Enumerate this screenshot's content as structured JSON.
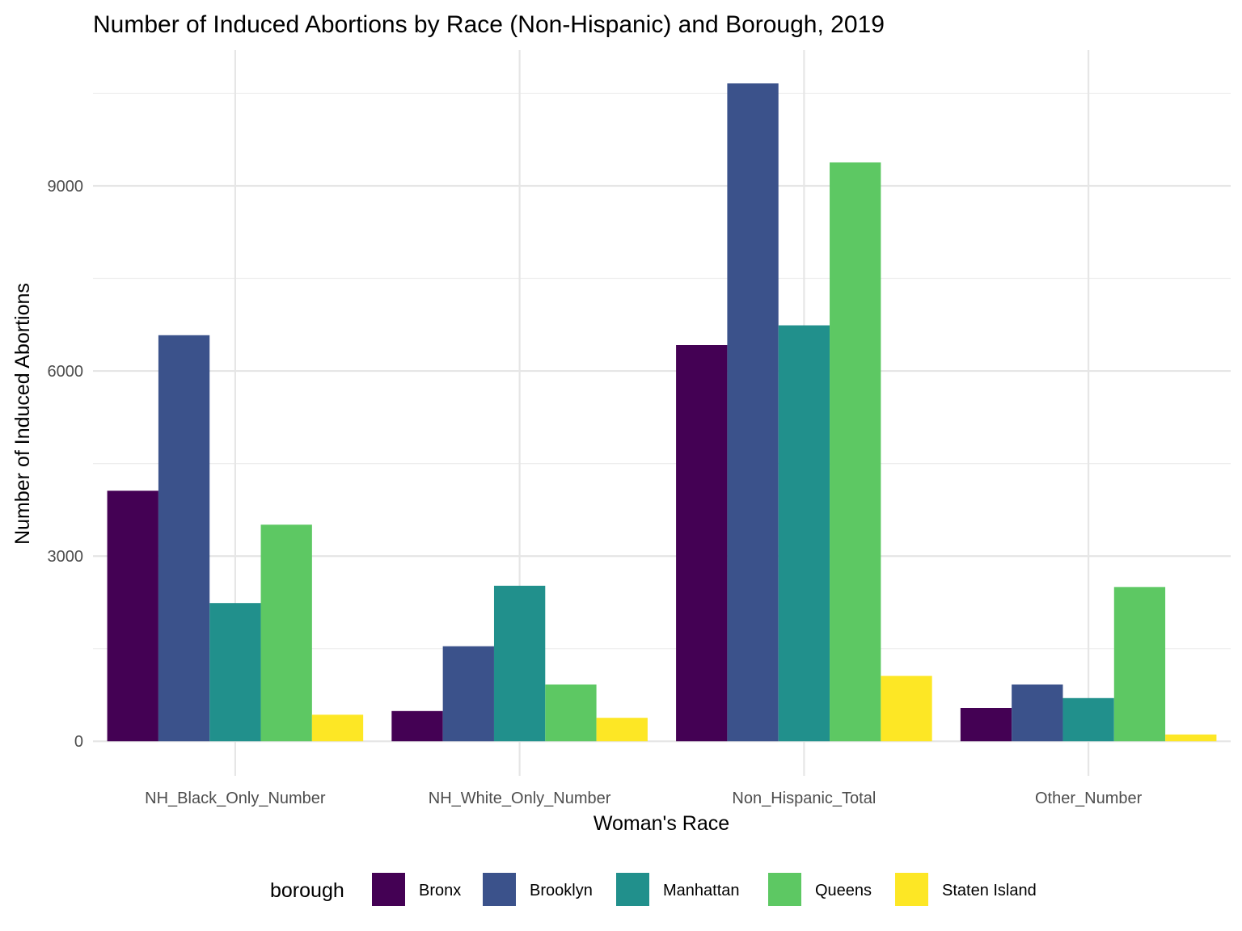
{
  "chart_data": {
    "type": "bar",
    "title": "Number of Induced Abortions by Race (Non-Hispanic) and Borough, 2019",
    "xlabel": "Woman's Race",
    "ylabel": "Number of Induced Abortions",
    "categories": [
      "NH_Black_Only_Number",
      "NH_White_Only_Number",
      "Non_Hispanic_Total",
      "Other_Number"
    ],
    "series": [
      {
        "name": "Bronx",
        "color": "#440154",
        "values": [
          4060,
          490,
          6420,
          540
        ]
      },
      {
        "name": "Brooklyn",
        "color": "#3B528B",
        "values": [
          6580,
          1540,
          10660,
          920
        ]
      },
      {
        "name": "Manhattan",
        "color": "#21908C",
        "values": [
          2240,
          2520,
          6740,
          700
        ]
      },
      {
        "name": "Queens",
        "color": "#5DC863",
        "values": [
          3510,
          920,
          9380,
          2500
        ]
      },
      {
        "name": "Staten Island",
        "color": "#FDE725",
        "values": [
          430,
          380,
          1060,
          110
        ]
      }
    ],
    "ylim": [
      -560,
      11200
    ],
    "yticks": [
      0,
      3000,
      6000,
      9000
    ],
    "grid": true,
    "legend": {
      "title": "borough",
      "position": "bottom"
    }
  }
}
